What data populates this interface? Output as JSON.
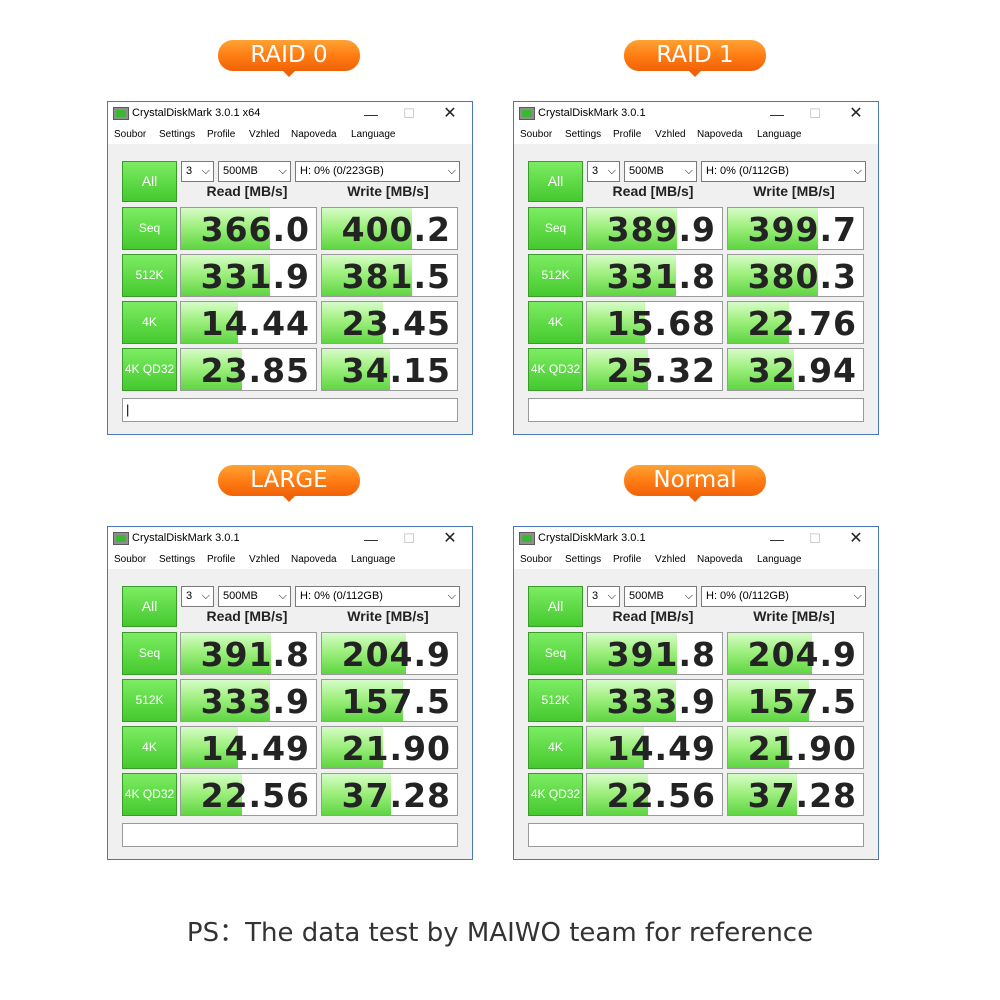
{
  "colors": {
    "pill": "#ff7a12",
    "accent_green": "#45c92f",
    "window_border": "#4a78b8"
  },
  "menu": [
    "Soubor",
    "Settings",
    "Profile",
    "Vzhled",
    "Napoveda",
    "Language"
  ],
  "icons": {
    "minimize": "minimize-icon",
    "maximize": "maximize-icon",
    "close": "close-icon",
    "app": "crystaldiskmark-icon",
    "dropdown": "chevron-down-icon"
  },
  "glyphs": {
    "minimize": "—",
    "maximize": "☐",
    "close": "✕",
    "dropdown": "⌵"
  },
  "labels": {
    "all": "All",
    "read": "Read [MB/s]",
    "write": "Write [MB/s]"
  },
  "row_labels": [
    "Seq",
    "512K",
    "4K",
    "4K QD32"
  ],
  "panels": [
    {
      "badge": "RAID 0",
      "title": "CrystalDiskMark 3.0.1 x64",
      "count": "3",
      "size": "500MB",
      "drive": "H: 0% (0/223GB)",
      "status": "|",
      "rows": [
        {
          "read": "366.0",
          "write": "400.2",
          "read_fill": 0.66,
          "write_fill": 0.67
        },
        {
          "read": "331.9",
          "write": "381.5",
          "read_fill": 0.66,
          "write_fill": 0.67
        },
        {
          "read": "14.44",
          "write": "23.45",
          "read_fill": 0.42,
          "write_fill": 0.45
        },
        {
          "read": "23.85",
          "write": "34.15",
          "read_fill": 0.45,
          "write_fill": 0.5
        }
      ]
    },
    {
      "badge": "RAID 1",
      "title": "CrystalDiskMark 3.0.1",
      "count": "3",
      "size": "500MB",
      "drive": "H: 0% (0/112GB)",
      "status": "",
      "rows": [
        {
          "read": "389.9",
          "write": "399.7",
          "read_fill": 0.67,
          "write_fill": 0.67
        },
        {
          "read": "331.8",
          "write": "380.3",
          "read_fill": 0.66,
          "write_fill": 0.67
        },
        {
          "read": "15.68",
          "write": "22.76",
          "read_fill": 0.43,
          "write_fill": 0.45
        },
        {
          "read": "25.32",
          "write": "32.94",
          "read_fill": 0.45,
          "write_fill": 0.49
        }
      ]
    },
    {
      "badge": "LARGE",
      "title": "CrystalDiskMark 3.0.1",
      "count": "3",
      "size": "500MB",
      "drive": "H: 0% (0/112GB)",
      "status": "",
      "rows": [
        {
          "read": "391.8",
          "write": "204.9",
          "read_fill": 0.67,
          "write_fill": 0.62
        },
        {
          "read": "333.9",
          "write": "157.5",
          "read_fill": 0.66,
          "write_fill": 0.6
        },
        {
          "read": "14.49",
          "write": "21.90",
          "read_fill": 0.42,
          "write_fill": 0.45
        },
        {
          "read": "22.56",
          "write": "37.28",
          "read_fill": 0.45,
          "write_fill": 0.51
        }
      ]
    },
    {
      "badge": "Normal",
      "title": "CrystalDiskMark 3.0.1",
      "count": "3",
      "size": "500MB",
      "drive": "H: 0% (0/112GB)",
      "status": "",
      "rows": [
        {
          "read": "391.8",
          "write": "204.9",
          "read_fill": 0.67,
          "write_fill": 0.62
        },
        {
          "read": "333.9",
          "write": "157.5",
          "read_fill": 0.66,
          "write_fill": 0.6
        },
        {
          "read": "14.49",
          "write": "21.90",
          "read_fill": 0.42,
          "write_fill": 0.45
        },
        {
          "read": "22.56",
          "write": "37.28",
          "read_fill": 0.45,
          "write_fill": 0.51
        }
      ]
    }
  ],
  "footer": "PS：The data test by MAIWO team for reference"
}
